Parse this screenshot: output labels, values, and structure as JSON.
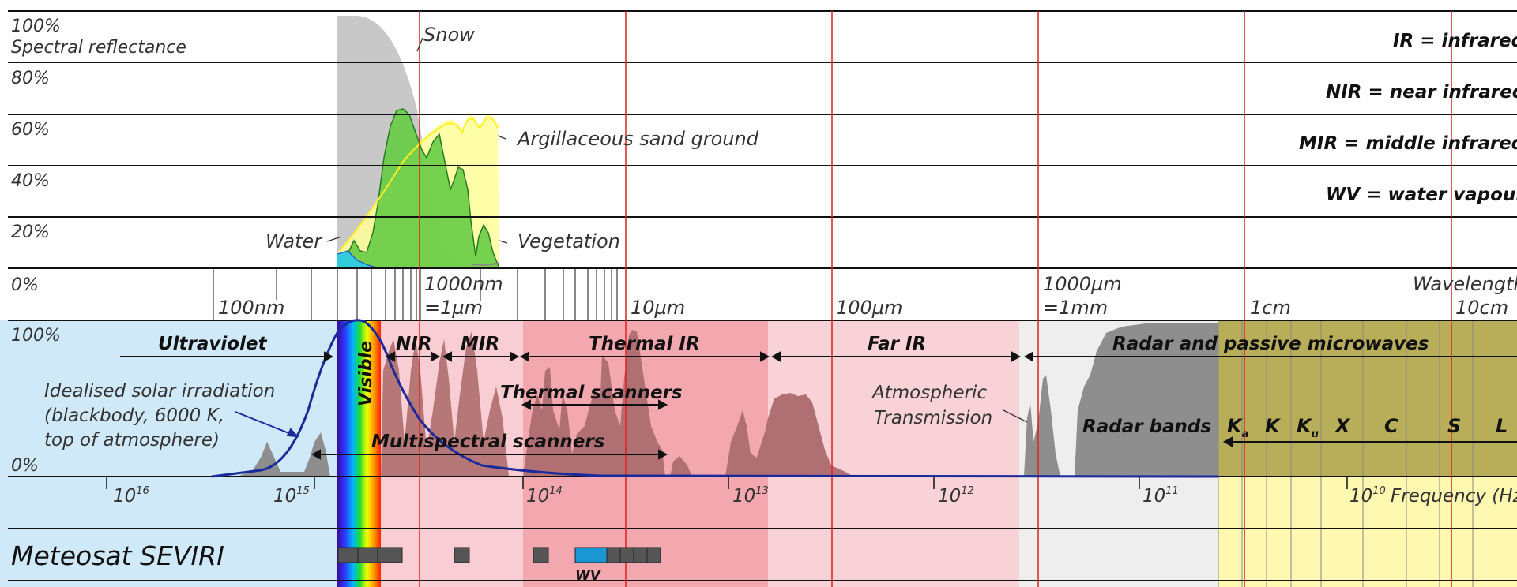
{
  "reflectance_axis": {
    "title": "Spectral reflectance",
    "ticks": [
      "100%",
      "80%",
      "60%",
      "40%",
      "20%",
      "0%"
    ]
  },
  "curves": {
    "snow": "Snow",
    "sand": "Argillaceous sand ground",
    "water": "Water",
    "vegetation": "Vegetation"
  },
  "legend": [
    "IR = infrared",
    "NIR = near infrared",
    "MIR = middle infrared",
    "WV = water vapour"
  ],
  "wavelength_axis": {
    "name": "Wavelength",
    "labels": {
      "nm100": "100nm",
      "nm1000_a": "1000nm",
      "nm1000_b": "=1µm",
      "um10": "10µm",
      "um100": "100µm",
      "um1000_a": "1000µm",
      "um1000_b": "=1mm",
      "cm1": "1cm",
      "cm10": "10cm"
    }
  },
  "spectrum": {
    "percent_top": "100%",
    "percent_bottom": "0%",
    "ultraviolet": "Ultraviolet",
    "visible": "Visible",
    "nir": "NIR",
    "mir": "MIR",
    "thermal_ir": "Thermal IR",
    "far_ir": "Far IR",
    "radar": "Radar and passive microwaves",
    "thermal_scanners": "Thermal scanners",
    "multispectral_scanners": "Multispectral scanners",
    "atmospheric_transmission": [
      "Atmospheric",
      "Transmission"
    ],
    "solar": [
      "Idealised solar irradiation",
      "(blackbody, 6000 K,",
      "top of atmosphere)"
    ],
    "radar_bands_label": "Radar bands",
    "radar_bands": {
      "ka_main": "K",
      "ka_sub": "a",
      "k": "K",
      "ku_main": "K",
      "ku_sub": "u",
      "x": "X",
      "c": "C",
      "s": "S",
      "l": "L"
    }
  },
  "frequency_axis": {
    "name": "Frequency (Hz)",
    "base": "10",
    "exponents": [
      "16",
      "15",
      "14",
      "13",
      "12",
      "11",
      "10"
    ]
  },
  "seviri": {
    "title": "Meteosat SEVIRI",
    "wv": "WV"
  },
  "colors": {
    "red_gridline": "#e02020",
    "uv_band": "#cfe9f8",
    "ir_band": "#f5c6cc",
    "thermal_band": "#f0a0a6",
    "radar_band": "#fff8b0",
    "radar_grey": "#9a9a9a",
    "vegetation": "#66cc44",
    "snow": "#c8c8c8",
    "sand": "#ffff99",
    "solar_curve": "#1a2a9a",
    "wv_channel": "#1a96d2"
  }
}
